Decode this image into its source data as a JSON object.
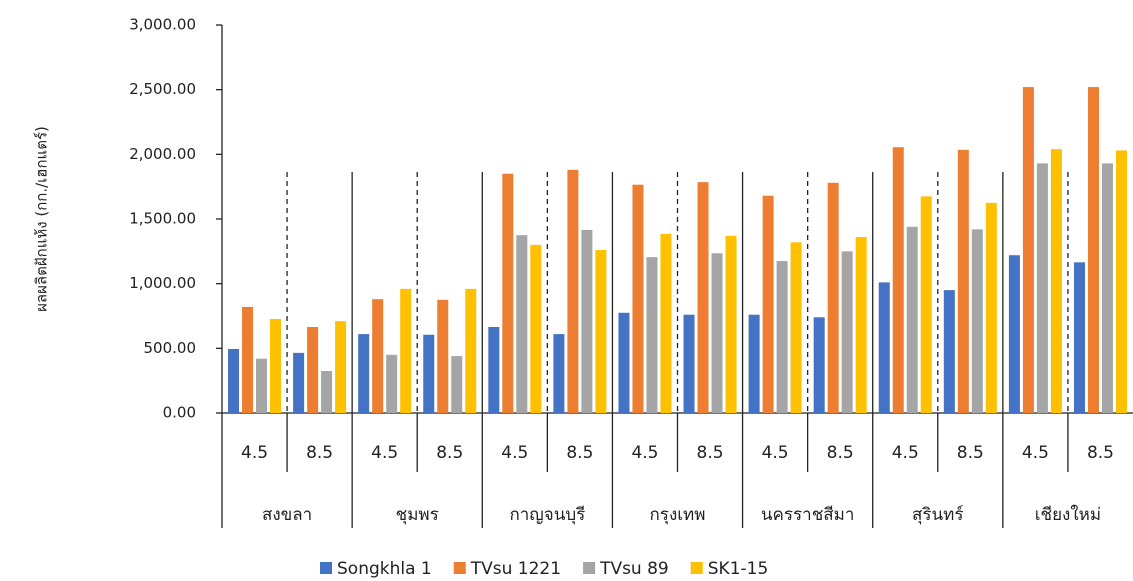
{
  "chart_data": {
    "type": "bar",
    "y_label": "ผลผลิตฝักแห้ง (กก./เฮกแตร์)",
    "categories": [
      "4.5",
      "8.5",
      "4.5",
      "8.5",
      "4.5",
      "8.5",
      "4.5",
      "8.5",
      "4.5",
      "8.5",
      "4.5",
      "8.5",
      "4.5",
      "8.5"
    ],
    "groups": [
      "สงขลา",
      "ชุมพร",
      "กาญจนบุรี",
      "กรุงเทพ",
      "นครราชสีมา",
      "สุรินทร์",
      "เชียงใหม่"
    ],
    "series": [
      {
        "name": "Songkhla 1",
        "color": "#4472c4",
        "values": [
          495,
          465,
          610,
          605,
          665,
          610,
          775,
          760,
          760,
          740,
          1010,
          950,
          1220,
          1165
        ]
      },
      {
        "name": "TVsu 1221",
        "color": "#ed7d31",
        "values": [
          820,
          665,
          880,
          875,
          1850,
          1880,
          1765,
          1785,
          1680,
          1780,
          2055,
          2035,
          2520,
          2520
        ]
      },
      {
        "name": "TVsu 89",
        "color": "#a5a5a5",
        "values": [
          420,
          325,
          450,
          440,
          1375,
          1415,
          1205,
          1235,
          1175,
          1250,
          1440,
          1420,
          1930,
          1930
        ]
      },
      {
        "name": "SK1-15",
        "color": "#ffc000",
        "values": [
          727,
          710,
          960,
          960,
          1300,
          1260,
          1385,
          1370,
          1320,
          1360,
          1675,
          1625,
          2040,
          2030
        ]
      }
    ],
    "ylim": [
      0,
      3000
    ],
    "yticks": [
      {
        "value": 0,
        "label": "0.00"
      },
      {
        "value": 500,
        "label": "500.00"
      },
      {
        "value": 1000,
        "label": "1,000.00"
      },
      {
        "value": 1500,
        "label": "1,500.00"
      },
      {
        "value": 2000,
        "label": "2,000.00"
      },
      {
        "value": 2500,
        "label": "2,500.00"
      },
      {
        "value": 3000,
        "label": "3,000.00"
      }
    ]
  }
}
